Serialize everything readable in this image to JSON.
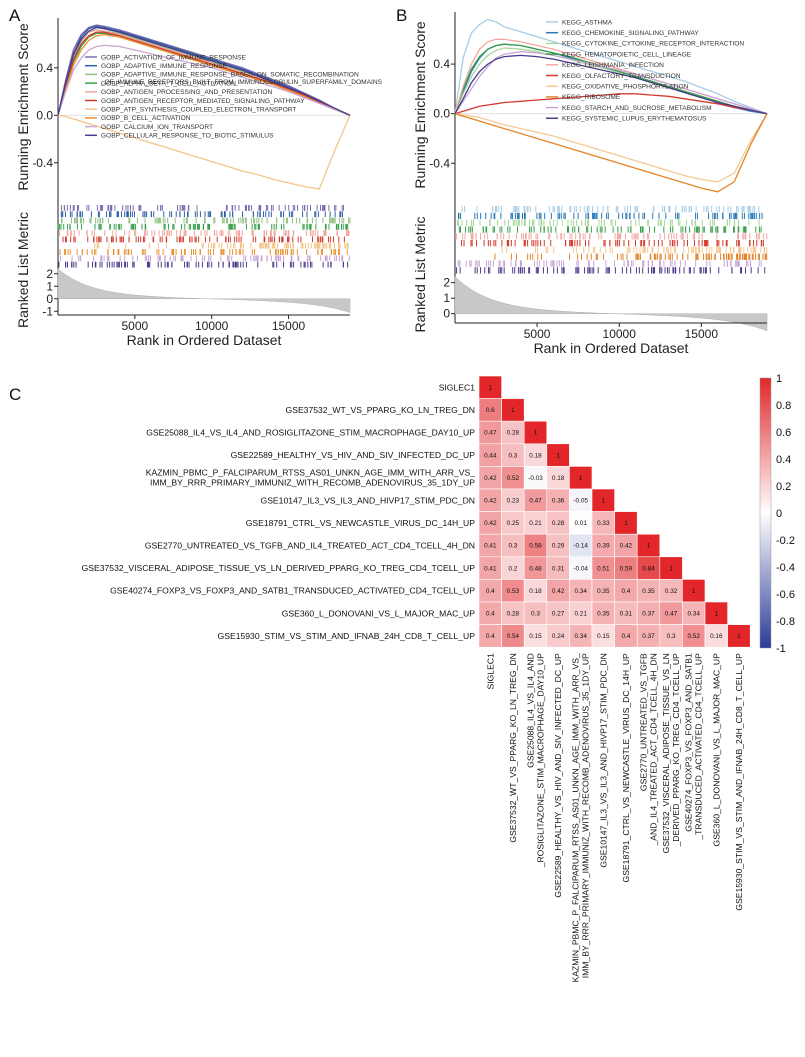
{
  "figure": {
    "panel_letters": [
      "A",
      "B",
      "C"
    ]
  },
  "chart_data": [
    {
      "panel": "A",
      "type": "line",
      "title": "",
      "ylabel": "Running Enrichment Score",
      "ylabel2": "Ranked List Metric",
      "xlabel": "Rank in Ordered Dataset",
      "xlim": [
        0,
        19000
      ],
      "ylim": [
        -0.68,
        0.82
      ],
      "yticks": [
        "0.4",
        "0.0",
        "-0.4"
      ],
      "ytick_values": [
        0.4,
        0.0,
        -0.4
      ],
      "xticks": [
        "5000",
        "10000",
        "15000"
      ],
      "xtick_values": [
        5000,
        10000,
        15000
      ],
      "metric_ticks": [
        "2",
        "1",
        "0",
        "-1"
      ],
      "metric_tick_values": [
        2,
        1,
        0,
        -1
      ],
      "x": [
        0,
        500,
        1000,
        1500,
        2000,
        2500,
        3000,
        4000,
        5000,
        6000,
        7000,
        8000,
        9000,
        10000,
        11000,
        12000,
        13000,
        14000,
        15000,
        16000,
        17000,
        18000,
        19000
      ],
      "series": [
        {
          "name": "GOBP_ACTIVATION_OF_IMMUNE_RESPONSE",
          "color": "#7b6db0",
          "values": [
            0,
            0.3,
            0.55,
            0.68,
            0.74,
            0.76,
            0.75,
            0.72,
            0.68,
            0.64,
            0.6,
            0.56,
            0.52,
            0.48,
            0.44,
            0.4,
            0.35,
            0.3,
            0.25,
            0.19,
            0.13,
            0.06,
            0
          ]
        },
        {
          "name": "GOBP_ADAPTIVE_IMMUNE_RESPONSE",
          "color": "#2e5fa8",
          "values": [
            0,
            0.28,
            0.52,
            0.66,
            0.73,
            0.75,
            0.74,
            0.71,
            0.67,
            0.63,
            0.59,
            0.55,
            0.51,
            0.47,
            0.43,
            0.39,
            0.34,
            0.29,
            0.24,
            0.18,
            0.12,
            0.06,
            0
          ]
        },
        {
          "name": "GOBP_ADAPTIVE_IMMUNE_RESPONSE_BASED_ON_SOMATIC_RECOMBINATION_OF_IMMUNE_RECEPTORS_BUILT_FROM_IMMUNOGLOBULIN_SUPERFAMILY_DOMAINS",
          "color": "#8fbf7f",
          "values": [
            0,
            0.25,
            0.48,
            0.62,
            0.7,
            0.72,
            0.71,
            0.69,
            0.65,
            0.61,
            0.57,
            0.53,
            0.49,
            0.45,
            0.41,
            0.37,
            0.32,
            0.28,
            0.23,
            0.17,
            0.12,
            0.06,
            0
          ]
        },
        {
          "name": "GOBP_ALPHA_BETA_T_CELL_ACTIVATION",
          "color": "#3aa04a",
          "values": [
            0,
            0.24,
            0.45,
            0.58,
            0.66,
            0.69,
            0.69,
            0.66,
            0.62,
            0.58,
            0.54,
            0.5,
            0.46,
            0.42,
            0.38,
            0.34,
            0.3,
            0.26,
            0.21,
            0.16,
            0.11,
            0.05,
            0
          ]
        },
        {
          "name": "GOBP_ANTIGEN_PROCESSING_AND_PRESENTATION",
          "color": "#f1a6a0",
          "values": [
            0,
            0.26,
            0.5,
            0.63,
            0.7,
            0.72,
            0.71,
            0.68,
            0.64,
            0.6,
            0.56,
            0.52,
            0.48,
            0.44,
            0.4,
            0.36,
            0.32,
            0.27,
            0.22,
            0.17,
            0.12,
            0.06,
            0
          ]
        },
        {
          "name": "GOBP_ANTIGEN_RECEPTOR_MEDIATED_SIGNALING_PATHWAY",
          "color": "#d33a2c",
          "values": [
            0,
            0.25,
            0.47,
            0.6,
            0.67,
            0.7,
            0.7,
            0.67,
            0.63,
            0.59,
            0.55,
            0.51,
            0.47,
            0.43,
            0.39,
            0.35,
            0.31,
            0.27,
            0.22,
            0.17,
            0.11,
            0.05,
            0
          ]
        },
        {
          "name": "GOBP_ATP_SYNTHESIS_COUPLED_ELECTRON_TRANSPORT",
          "color": "#f4c58a",
          "values": [
            0,
            -0.01,
            -0.03,
            -0.05,
            -0.07,
            -0.09,
            -0.11,
            -0.15,
            -0.19,
            -0.23,
            -0.27,
            -0.31,
            -0.35,
            -0.39,
            -0.43,
            -0.47,
            -0.5,
            -0.54,
            -0.57,
            -0.6,
            -0.62,
            -0.3,
            0
          ]
        },
        {
          "name": "GOBP_B_CELL_ACTIVATION",
          "color": "#e8922e",
          "values": [
            0,
            0.22,
            0.42,
            0.55,
            0.63,
            0.67,
            0.68,
            0.66,
            0.62,
            0.58,
            0.54,
            0.5,
            0.46,
            0.42,
            0.38,
            0.34,
            0.3,
            0.26,
            0.21,
            0.16,
            0.1,
            0.05,
            0
          ]
        },
        {
          "name": "GOBP_CALCIUM_ION_TRANSPORT",
          "color": "#c9a6d6",
          "values": [
            0,
            0.2,
            0.38,
            0.48,
            0.55,
            0.58,
            0.59,
            0.58,
            0.55,
            0.52,
            0.49,
            0.46,
            0.43,
            0.4,
            0.36,
            0.32,
            0.28,
            0.24,
            0.2,
            0.15,
            0.1,
            0.05,
            0
          ]
        },
        {
          "name": "GOBP_CELLULAR_RESPONSE_TO_BIOTIC_STIMULUS",
          "color": "#4b3a8c",
          "values": [
            0,
            0.27,
            0.51,
            0.64,
            0.71,
            0.74,
            0.73,
            0.7,
            0.66,
            0.62,
            0.58,
            0.54,
            0.5,
            0.46,
            0.42,
            0.38,
            0.33,
            0.28,
            0.23,
            0.18,
            0.12,
            0.06,
            0
          ]
        }
      ]
    },
    {
      "panel": "B",
      "type": "line",
      "title": "",
      "ylabel": "Running Enrichment Score",
      "ylabel2": "Ranked List Metric",
      "xlabel": "Rank in Ordered Dataset",
      "xlim": [
        0,
        19000
      ],
      "ylim": [
        -0.68,
        0.82
      ],
      "yticks": [
        "0.4",
        "0.0",
        "-0.4"
      ],
      "ytick_values": [
        0.4,
        0.0,
        -0.4
      ],
      "xticks": [
        "5000",
        "10000",
        "15000"
      ],
      "xtick_values": [
        5000,
        10000,
        15000
      ],
      "metric_ticks": [
        "2",
        "1",
        "0"
      ],
      "metric_tick_values": [
        2,
        1,
        0
      ],
      "x": [
        0,
        500,
        1000,
        1500,
        2000,
        2500,
        3000,
        4000,
        5000,
        6000,
        7000,
        8000,
        9000,
        10000,
        11000,
        12000,
        13000,
        14000,
        15000,
        16000,
        17000,
        18000,
        19000
      ],
      "series": [
        {
          "name": "KEGG_ASTHMA",
          "color": "#a7cde6",
          "values": [
            0,
            0.45,
            0.65,
            0.72,
            0.76,
            0.74,
            0.7,
            0.66,
            0.62,
            0.58,
            0.54,
            0.5,
            0.46,
            0.42,
            0.38,
            0.34,
            0.3,
            0.26,
            0.21,
            0.16,
            0.1,
            0.05,
            0
          ]
        },
        {
          "name": "KEGG_CHEMOKINE_SIGNALING_PATHWAY",
          "color": "#2a7ab8",
          "values": [
            0,
            0.18,
            0.34,
            0.45,
            0.52,
            0.55,
            0.56,
            0.55,
            0.52,
            0.49,
            0.45,
            0.41,
            0.37,
            0.33,
            0.29,
            0.25,
            0.21,
            0.17,
            0.13,
            0.09,
            0.05,
            0.02,
            0
          ]
        },
        {
          "name": "KEGG_CYTOKINE_CYTOKINE_RECEPTOR_INTERACTION",
          "color": "#a8d89a",
          "values": [
            0,
            0.16,
            0.3,
            0.4,
            0.47,
            0.51,
            0.53,
            0.52,
            0.5,
            0.47,
            0.44,
            0.4,
            0.37,
            0.33,
            0.29,
            0.25,
            0.21,
            0.17,
            0.13,
            0.09,
            0.06,
            0.03,
            0
          ]
        },
        {
          "name": "KEGG_HEMATOPOIETIC_CELL_LINEAGE",
          "color": "#3aa04a",
          "values": [
            0,
            0.2,
            0.36,
            0.46,
            0.52,
            0.55,
            0.56,
            0.55,
            0.52,
            0.49,
            0.46,
            0.42,
            0.38,
            0.34,
            0.3,
            0.26,
            0.22,
            0.18,
            0.14,
            0.1,
            0.06,
            0.03,
            0
          ]
        },
        {
          "name": "KEGG_LEISHMANIA_INFECTION",
          "color": "#f3a7a1",
          "values": [
            0,
            0.22,
            0.4,
            0.52,
            0.58,
            0.6,
            0.6,
            0.58,
            0.55,
            0.52,
            0.48,
            0.44,
            0.4,
            0.36,
            0.32,
            0.28,
            0.24,
            0.2,
            0.16,
            0.12,
            0.08,
            0.04,
            0
          ]
        },
        {
          "name": "KEGG_OLFACTORY_TRANSDUCTION",
          "color": "#d33a2c",
          "values": [
            0,
            0.02,
            0.04,
            0.06,
            0.07,
            0.08,
            0.09,
            0.1,
            0.11,
            0.12,
            0.13,
            0.14,
            0.15,
            0.16,
            0.16,
            0.15,
            0.14,
            0.12,
            0.1,
            0.08,
            0.05,
            0.03,
            0
          ]
        },
        {
          "name": "KEGG_OXIDATIVE_PHOSPHORYLATION",
          "color": "#f6c994",
          "values": [
            0,
            -0.01,
            -0.02,
            -0.03,
            -0.05,
            -0.07,
            -0.09,
            -0.12,
            -0.15,
            -0.18,
            -0.22,
            -0.26,
            -0.3,
            -0.34,
            -0.38,
            -0.42,
            -0.46,
            -0.5,
            -0.53,
            -0.55,
            -0.48,
            -0.22,
            0
          ]
        },
        {
          "name": "KEGG_RIBOSOME",
          "color": "#e5852a",
          "values": [
            0,
            -0.02,
            -0.04,
            -0.06,
            -0.08,
            -0.1,
            -0.12,
            -0.16,
            -0.2,
            -0.24,
            -0.28,
            -0.32,
            -0.36,
            -0.4,
            -0.44,
            -0.48,
            -0.52,
            -0.56,
            -0.6,
            -0.63,
            -0.55,
            -0.25,
            0
          ]
        },
        {
          "name": "KEGG_STARCH_AND_SUCROSE_METABOLISM",
          "color": "#c9a6d6",
          "values": [
            0,
            0.1,
            0.2,
            0.3,
            0.38,
            0.45,
            0.48,
            0.5,
            0.49,
            0.47,
            0.44,
            0.41,
            0.38,
            0.35,
            0.32,
            0.28,
            0.24,
            0.2,
            0.16,
            0.12,
            0.08,
            0.04,
            0
          ]
        },
        {
          "name": "KEGG_SYSTEMIC_LUPUS_ERYTHEMATOSUS",
          "color": "#4b3a8c",
          "values": [
            0,
            0.12,
            0.25,
            0.34,
            0.4,
            0.44,
            0.46,
            0.47,
            0.46,
            0.44,
            0.41,
            0.38,
            0.35,
            0.32,
            0.29,
            0.25,
            0.21,
            0.17,
            0.13,
            0.09,
            0.06,
            0.03,
            0
          ]
        }
      ]
    },
    {
      "panel": "C",
      "type": "heatmap",
      "title": "",
      "labels": [
        "SIGLEC1",
        "GSE37532_WT_VS_PPARG_KO_LN_TREG_DN",
        "GSE25088_IL4_VS_IL4_AND_ROSIGLITAZONE_STIM_MACROPHAGE_DAY10_UP",
        "GSE22589_HEALTHY_VS_HIV_AND_SIV_INFECTED_DC_UP",
        "KAZMIN_PBMC_P_FALCIPARUM_RTSS_AS01_UNKN_AGE_IMM_WITH_ARR_VS_IMM_BY_RRR_PRIMARY_IMMUNIZ_WITH_RECOMB_ADENOVIRUS_35_1DY_UP",
        "GSE10147_IL3_VS_IL3_AND_HIVP17_STIM_PDC_DN",
        "GSE18791_CTRL_VS_NEWCASTLE_VIRUS_DC_14H_UP",
        "GSE2770_UNTREATED_VS_TGFB_AND_IL4_TREATED_ACT_CD4_TCELL_4H_DN",
        "GSE37532_VISCERAL_ADIPOSE_TISSUE_VS_LN_DERIVED_PPARG_KO_TREG_CD4_TCELL_UP",
        "GSE40274_FOXP3_VS_FOXP3_AND_SATB1_TRANSDUCED_ACTIVATED_CD4_TCELL_UP",
        "GSE360_L_DONOVANI_VS_L_MAJOR_MAC_UP",
        "GSE15930_STIM_VS_STIM_AND_IFNAB_24H_CD8_T_CELL_UP"
      ],
      "row_labels": [
        "SIGLEC1",
        "GSE37532_WT_VS_PPARG_KO_LN_TREG_DN",
        "GSE25088_IL4_VS_IL4_AND_ROSIGLITAZONE_STIM_MACROPHAGE_DAY10_UP",
        "GSE22589_HEALTHY_VS_HIV_AND_SIV_INFECTED_DC_UP",
        "KAZMIN_PBMC_P_FALCIPARUM_RTSS_AS01_UNKN_AGE_IMM_WITH_ARR_VS_\nIMM_BY_RRR_PRIMARY_IMMUNIZ_WITH_RECOMB_ADENOVIRUS_35_1DY_UP",
        "GSE10147_IL3_VS_IL3_AND_HIVP17_STIM_PDC_DN",
        "GSE18791_CTRL_VS_NEWCASTLE_VIRUS_DC_14H_UP",
        "GSE2770_UNTREATED_VS_TGFB_AND_IL4_TREATED_ACT_CD4_TCELL_4H_DN",
        "GSE37532_VISCERAL_ADIPOSE_TISSUE_VS_LN_DERIVED_PPARG_KO_TREG_CD4_TCELL_UP",
        "GSE40274_FOXP3_VS_FOXP3_AND_SATB1_TRANSDUCED_ACTIVATED_CD4_TCELL_UP",
        "GSE360_L_DONOVANI_VS_L_MAJOR_MAC_UP",
        "GSE15930_STIM_VS_STIM_AND_IFNAB_24H_CD8_T_CELL_UP"
      ],
      "col_labels": [
        "SIGLEC1",
        "GSE37532_WT_VS_PPARG_KO_LN_TREG_DN",
        "GSE25088_IL4_VS_IL4_AND\n_ROSIGLITAZONE_STIM_MACROPHAGE_DAY10_UP",
        "GSE22589_HEALTHY_VS_HIV_AND_SIV_INFECTED_DC_UP",
        "KAZMIN_PBMC_P_FALCIPARUM_RTSS_AS01_UNKN_AGE_IMM_WITH_ARR_VS_\nIMM_BY_RRR_PRIMARY_IMMUNIZ_WITH_RECOMB_ADENOVIRUS_35_1DY_UP",
        "GSE10147_IL3_VS_IL3_AND_HIVP17_STIM_PDC_DN",
        "GSE18791_CTRL_VS_NEWCASTLE_VIRUS_DC_14H_UP",
        "GSE2770_UNTREATED_VS_TGFB\n_AND_IL4_TREATED_ACT_CD4_TCELL_4H_DN",
        "GSE37532_VISCERAL_ADIPOSE_TISSUE_VS_LN\n_DERIVED_PPARG_KO_TREG_CD4_TCELL_UP",
        "GSE40274_FOXP3_VS_FOXP3_AND_SATB1\n_TRANSDUCED_ACTIVATED_CD4_TCELL_UP",
        "GSE360_L_DONOVANI_VS_L_MAJOR_MAC_UP",
        "GSE15930_STIM_VS_STIM_AND_IFNAB_24H_CD8_T_CELL_UP"
      ],
      "matrix": [
        [
          1
        ],
        [
          0.6,
          1
        ],
        [
          0.47,
          0.28,
          1
        ],
        [
          0.44,
          0.3,
          0.18,
          1
        ],
        [
          0.42,
          0.52,
          -0.03,
          0.18,
          1
        ],
        [
          0.42,
          0.23,
          0.47,
          0.36,
          -0.05,
          1
        ],
        [
          0.42,
          0.25,
          0.21,
          0.28,
          0.01,
          0.33,
          1
        ],
        [
          0.41,
          0.3,
          0.58,
          0.29,
          -0.14,
          0.39,
          0.42,
          1
        ],
        [
          0.41,
          0.2,
          0.48,
          0.31,
          -0.04,
          0.51,
          0.59,
          0.84,
          1
        ],
        [
          0.4,
          0.53,
          0.18,
          0.42,
          0.34,
          0.35,
          0.4,
          0.35,
          0.32,
          1
        ],
        [
          0.4,
          0.28,
          0.3,
          0.27,
          0.21,
          0.35,
          0.31,
          0.37,
          0.47,
          0.34,
          1
        ],
        [
          0.4,
          0.54,
          0.15,
          0.24,
          0.34,
          0.15,
          0.4,
          0.37,
          0.3,
          0.52,
          0.16,
          1
        ]
      ],
      "value_labels": [
        [
          "1"
        ],
        [
          "0.6",
          "1"
        ],
        [
          "0.47",
          "0.28",
          "1"
        ],
        [
          "0.44",
          "0.3",
          "0.18",
          "1"
        ],
        [
          "0.42",
          "0.52",
          "-0.03",
          "0.18",
          "1"
        ],
        [
          "0.42",
          "0.23",
          "0.47",
          "0.36",
          "-0.05",
          "1"
        ],
        [
          "0.42",
          "0.25",
          "0.21",
          "0.28",
          "0.01",
          "0.33",
          "1"
        ],
        [
          "0.41",
          "0.3",
          "0.58",
          "0.29",
          "-0.14",
          "0.39",
          "0.42",
          "1"
        ],
        [
          "0.41",
          "0.2",
          "0.48",
          "0.31",
          "-0.04",
          "0.51",
          "0.59",
          "0.84",
          "1"
        ],
        [
          "0.4",
          "0.53",
          "0.18",
          "0.42",
          "0.34",
          "0.35",
          "0.4",
          "0.35",
          "0.32",
          "1"
        ],
        [
          "0.4",
          "0.28",
          "0.3",
          "0.27",
          "0.21",
          "0.35",
          "0.31",
          "0.37",
          "0.47",
          "0.34",
          "1"
        ],
        [
          "0.4",
          "0.54",
          "0.15",
          "0.24",
          "0.34",
          "0.15",
          "0.4",
          "0.37",
          "0.3",
          "0.52",
          "0.16",
          "1"
        ]
      ],
      "colorbar": {
        "ticks": [
          "1",
          "0.8",
          "0.6",
          "0.4",
          "0.2",
          "0",
          "-0.2",
          "-0.4",
          "-0.6",
          "-0.8",
          "-1"
        ],
        "tick_values": [
          1,
          0.8,
          0.6,
          0.4,
          0.2,
          0,
          -0.2,
          -0.4,
          -0.6,
          -0.8,
          -1
        ],
        "high_color": "#e2262a",
        "mid_color": "#ffffff",
        "low_color": "#2b3b98"
      }
    }
  ]
}
